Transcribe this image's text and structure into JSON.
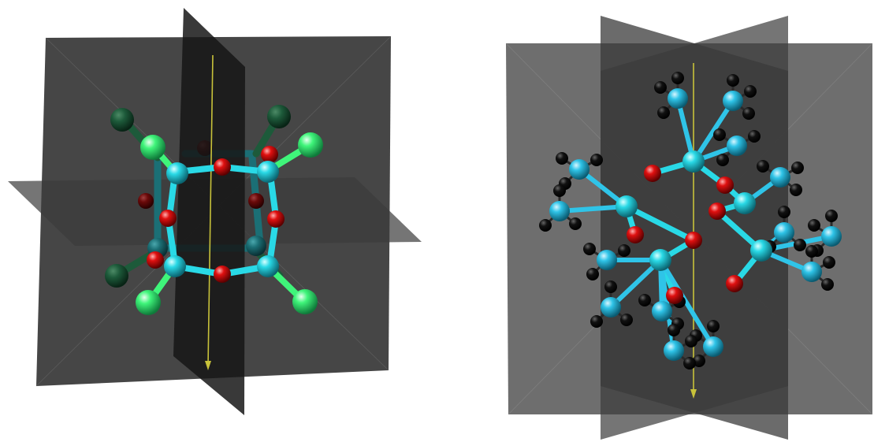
{
  "colors": {
    "background": "#ffffff",
    "plane_fill": "#2c2c2c",
    "plane_fill_light": "#555555",
    "silicon": "#29d9e6",
    "silicon_dark": "#1b6f75",
    "oxygen": "#e01010",
    "oxygen_dark": "#6a0a0a",
    "chlorine": "#3ff57a",
    "chlorine_dark": "#1d5a3a",
    "carbon": "#2fc4e8",
    "carbon_dark": "#1a6f7e",
    "hydrogen": "#0a0a0a",
    "rotation_axis": "#c8c23a"
  },
  "panels": [
    {
      "name": "left-molecule",
      "atom_types": [
        "silicon",
        "oxygen",
        "chlorine"
      ],
      "symmetry_planes": 3,
      "rotation_axis": true
    },
    {
      "name": "right-molecule",
      "atom_types": [
        "silicon",
        "oxygen",
        "carbon",
        "hydrogen"
      ],
      "symmetry_planes": 3,
      "rotation_axis": true
    }
  ]
}
